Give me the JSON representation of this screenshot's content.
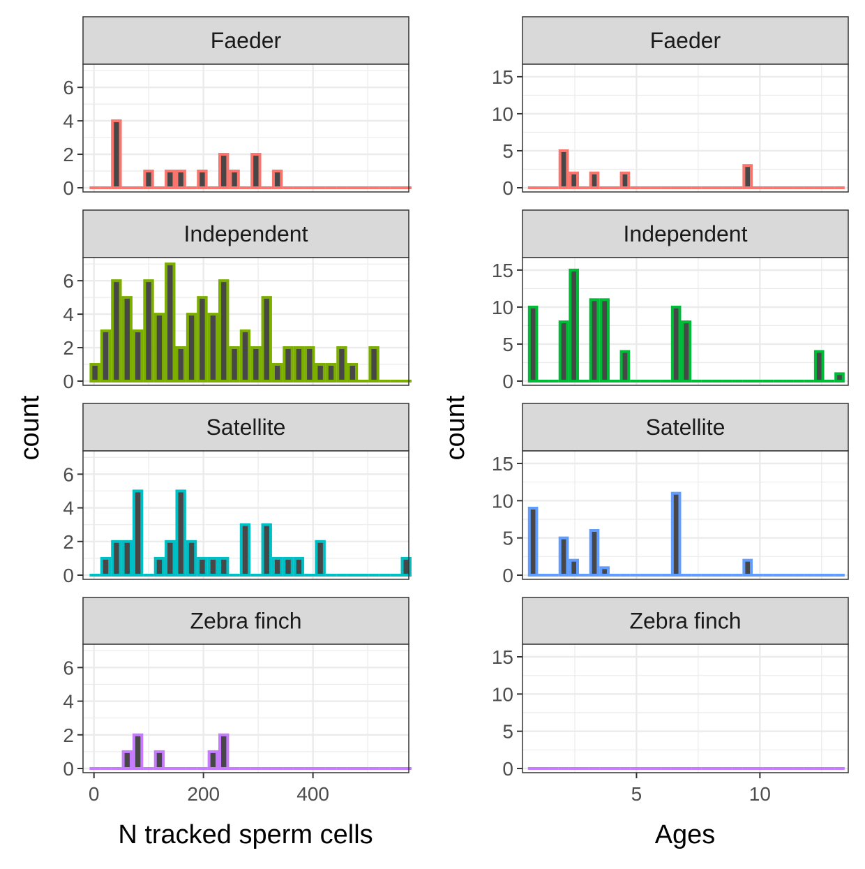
{
  "chart_data": [
    {
      "type": "histogram",
      "xlabel": "N tracked sperm cells",
      "ylabel": "count",
      "xlim": [
        -20,
        575
      ],
      "ylim": [
        0,
        7.3
      ],
      "xticks": [
        0,
        200,
        400
      ],
      "yticks": [
        0,
        2,
        4,
        6
      ],
      "bin_start": -8,
      "bin_width": 19.6,
      "grid": true,
      "series": [
        {
          "name": "Faeder",
          "color": "#F8766D",
          "values": [
            0,
            0,
            4,
            0,
            0,
            1,
            0,
            1,
            1,
            0,
            1,
            0,
            2,
            1,
            0,
            2,
            0,
            1,
            0,
            0,
            0,
            0,
            0,
            0,
            0,
            0,
            0,
            0,
            0,
            0
          ]
        },
        {
          "name": "Independent",
          "color": "#7CAE00",
          "values": [
            1,
            3,
            6,
            5,
            3,
            6,
            4,
            7,
            2,
            4,
            5,
            4,
            6,
            2,
            3,
            2,
            5,
            1,
            2,
            2,
            2,
            1,
            1,
            2,
            1,
            0,
            2,
            0,
            0,
            0
          ]
        },
        {
          "name": "Satellite",
          "color": "#00BFC4",
          "values": [
            0,
            1,
            2,
            2,
            5,
            0,
            1,
            2,
            5,
            2,
            1,
            1,
            1,
            0,
            3,
            0,
            3,
            1,
            1,
            1,
            0,
            2,
            0,
            0,
            0,
            0,
            0,
            0,
            0,
            1
          ]
        },
        {
          "name": "Zebra finch",
          "color": "#C77CFF",
          "values": [
            0,
            0,
            0,
            1,
            2,
            0,
            1,
            0,
            0,
            0,
            0,
            1,
            2,
            0,
            0,
            0,
            0,
            0,
            0,
            0,
            0,
            0,
            0,
            0,
            0,
            0,
            0,
            0,
            0,
            0
          ]
        }
      ]
    },
    {
      "type": "histogram",
      "xlabel": "Ages",
      "ylabel": "count",
      "xlim": [
        0.38,
        13.58
      ],
      "ylim": [
        0,
        16.5
      ],
      "xticks": [
        5,
        10
      ],
      "yticks": [
        0,
        5,
        10,
        15
      ],
      "bin_start": 0.6,
      "bin_width": 0.414,
      "grid": true,
      "series": [
        {
          "name": "Faeder",
          "color": "#F8766D",
          "values": [
            0,
            0,
            0,
            5,
            2,
            0,
            2,
            0,
            0,
            2,
            0,
            0,
            0,
            0,
            0,
            0,
            0,
            0,
            0,
            0,
            0,
            3,
            0,
            0,
            0,
            0,
            0,
            0,
            0,
            0,
            0
          ]
        },
        {
          "name": "Independent",
          "color": "#00BA38",
          "values": [
            10,
            0,
            0,
            8,
            15,
            0,
            11,
            11,
            0,
            4,
            0,
            0,
            0,
            0,
            10,
            8,
            0,
            0,
            0,
            0,
            0,
            0,
            0,
            0,
            0,
            0,
            0,
            0,
            4,
            0,
            1
          ]
        },
        {
          "name": "Satellite",
          "color": "#619CFF",
          "values": [
            9,
            0,
            0,
            5,
            2,
            0,
            6,
            1,
            0,
            0,
            0,
            0,
            0,
            0,
            11,
            0,
            0,
            0,
            0,
            0,
            0,
            2,
            0,
            0,
            0,
            0,
            0,
            0,
            0,
            0,
            0
          ]
        },
        {
          "name": "Zebra finch",
          "color": "#C77CFF",
          "values": [
            0,
            0,
            0,
            0,
            0,
            0,
            0,
            0,
            0,
            0,
            0,
            0,
            0,
            0,
            0,
            0,
            0,
            0,
            0,
            0,
            0,
            0,
            0,
            0,
            0,
            0,
            0,
            0,
            0,
            0,
            0
          ]
        }
      ]
    }
  ]
}
